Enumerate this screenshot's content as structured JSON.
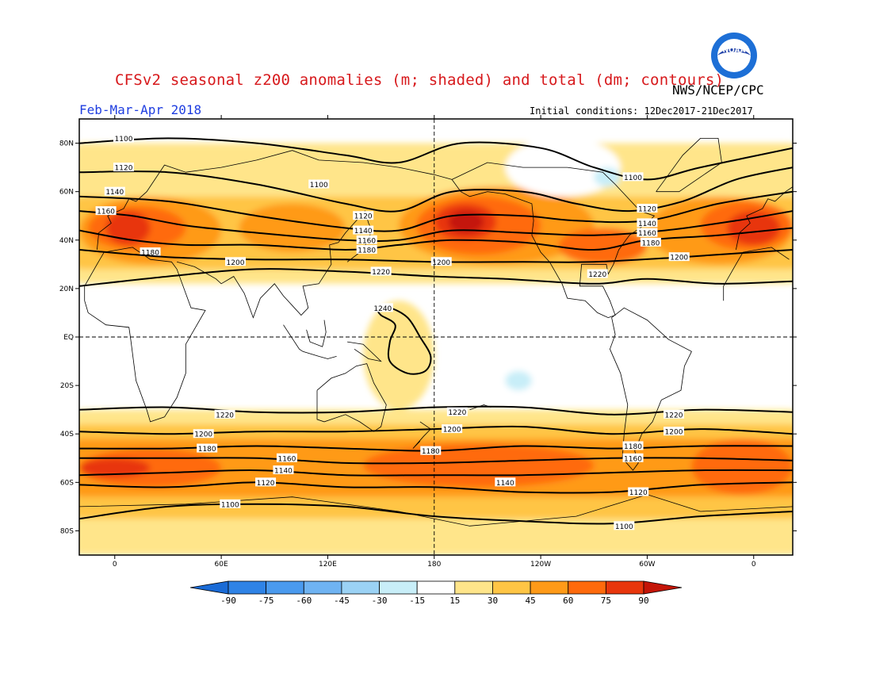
{
  "title": "CFSv2 seasonal z200 anomalies (m; shaded) and total (dm; contours)",
  "agency": "NWS/NCEP/CPC",
  "period": "Feb-Mar-Apr 2018",
  "initial_conditions": "Initial conditions: 12Dec2017-21Dec2017",
  "logo": {
    "text": "NOAA",
    "icon": "noaa-logo-icon",
    "colors": {
      "outer": "#1d6fd6",
      "inner": "#ffffff",
      "bird": "#1d3fa8"
    }
  },
  "map": {
    "projection": "cylindrical",
    "lon_range": [
      -20,
      382
    ],
    "lat_range": [
      -90,
      90
    ],
    "center_meridian_dashed": 180,
    "equator_dashed": true,
    "lat_ticks": [
      {
        "lat": 80,
        "label": "80N"
      },
      {
        "lat": 60,
        "label": "60N"
      },
      {
        "lat": 40,
        "label": "40N"
      },
      {
        "lat": 20,
        "label": "20N"
      },
      {
        "lat": 0,
        "label": "EQ"
      },
      {
        "lat": -20,
        "label": "20S"
      },
      {
        "lat": -40,
        "label": "40S"
      },
      {
        "lat": -60,
        "label": "60S"
      },
      {
        "lat": -80,
        "label": "80S"
      }
    ],
    "lon_ticks": [
      {
        "lon": 0,
        "label": "0"
      },
      {
        "lon": 60,
        "label": "60E"
      },
      {
        "lon": 120,
        "label": "120E"
      },
      {
        "lon": 180,
        "label": "180"
      },
      {
        "lon": 240,
        "label": "120W"
      },
      {
        "lon": 300,
        "label": "60W"
      },
      {
        "lon": 360,
        "label": "0"
      }
    ]
  },
  "anomaly_regions": [
    {
      "level": 15,
      "lon": [
        -20,
        382
      ],
      "lat": [
        22,
        80
      ],
      "shape": "band"
    },
    {
      "level": 15,
      "lon": [
        -20,
        382
      ],
      "lat": [
        -90,
        -30
      ],
      "shape": "band"
    },
    {
      "level": 15,
      "lon": [
        140,
        180
      ],
      "lat": [
        -30,
        15
      ],
      "shape": "blob"
    },
    {
      "level": 30,
      "lon": [
        -20,
        382
      ],
      "lat": [
        28,
        58
      ],
      "shape": "band"
    },
    {
      "level": 30,
      "lon": [
        -20,
        382
      ],
      "lat": [
        -75,
        -36
      ],
      "shape": "band"
    },
    {
      "level": 45,
      "lon": [
        -20,
        60
      ],
      "lat": [
        30,
        58
      ],
      "shape": "blob"
    },
    {
      "level": 45,
      "lon": [
        70,
        130
      ],
      "lat": [
        35,
        55
      ],
      "shape": "blob"
    },
    {
      "level": 45,
      "lon": [
        160,
        270
      ],
      "lat": [
        30,
        62
      ],
      "shape": "blob"
    },
    {
      "level": 45,
      "lon": [
        300,
        382
      ],
      "lat": [
        30,
        58
      ],
      "shape": "blob"
    },
    {
      "level": 45,
      "lon": [
        -20,
        382
      ],
      "lat": [
        -66,
        -42
      ],
      "shape": "band"
    },
    {
      "level": 60,
      "lon": [
        -15,
        40
      ],
      "lat": [
        36,
        54
      ],
      "shape": "blob"
    },
    {
      "level": 60,
      "lon": [
        170,
        240
      ],
      "lat": [
        34,
        58
      ],
      "shape": "blob"
    },
    {
      "level": 60,
      "lon": [
        250,
        300
      ],
      "lat": [
        30,
        45
      ],
      "shape": "blob"
    },
    {
      "level": 60,
      "lon": [
        330,
        382
      ],
      "lat": [
        36,
        56
      ],
      "shape": "blob"
    },
    {
      "level": 60,
      "lon": [
        -20,
        60
      ],
      "lat": [
        -62,
        -46
      ],
      "shape": "blob"
    },
    {
      "level": 60,
      "lon": [
        140,
        270
      ],
      "lat": [
        -62,
        -44
      ],
      "shape": "blob"
    },
    {
      "level": 60,
      "lon": [
        325,
        382
      ],
      "lat": [
        -65,
        -42
      ],
      "shape": "blob"
    },
    {
      "level": 75,
      "lon": [
        -5,
        20
      ],
      "lat": [
        38,
        52
      ],
      "shape": "blob"
    },
    {
      "level": 75,
      "lon": [
        180,
        215
      ],
      "lat": [
        40,
        55
      ],
      "shape": "blob"
    },
    {
      "level": 75,
      "lon": [
        345,
        375
      ],
      "lat": [
        38,
        52
      ],
      "shape": "blob"
    },
    {
      "level": 75,
      "lon": [
        -20,
        20
      ],
      "lat": [
        -58,
        -50
      ],
      "shape": "blob"
    },
    {
      "level": 90,
      "lon": [
        188,
        208
      ],
      "lat": [
        43,
        52
      ],
      "shape": "blob"
    },
    {
      "level": -15,
      "lon": [
        220,
        285
      ],
      "lat": [
        58,
        82
      ],
      "shape": "blob"
    },
    {
      "level": -30,
      "lon": [
        270,
        285
      ],
      "lat": [
        62,
        70
      ],
      "shape": "blob"
    },
    {
      "level": -15,
      "lon": [
        210,
        245
      ],
      "lat": [
        -28,
        -10
      ],
      "shape": "blob"
    },
    {
      "level": -30,
      "lon": [
        220,
        235
      ],
      "lat": [
        -22,
        -14
      ],
      "shape": "blob"
    }
  ],
  "contours": [
    {
      "value": "1100",
      "points": [
        [
          -20,
          80
        ],
        [
          30,
          82
        ],
        [
          80,
          80
        ],
        [
          130,
          75
        ],
        [
          160,
          72
        ],
        [
          195,
          80
        ],
        [
          240,
          78
        ],
        [
          270,
          70
        ],
        [
          300,
          65
        ],
        [
          330,
          70
        ],
        [
          382,
          78
        ]
      ],
      "labels": [
        {
          "lon": 5,
          "lat": 82
        },
        {
          "lon": 115,
          "lat": 63
        },
        {
          "lon": 292,
          "lat": 66
        }
      ]
    },
    {
      "value": "1120",
      "points": [
        [
          -20,
          68
        ],
        [
          30,
          68
        ],
        [
          80,
          63
        ],
        [
          130,
          55
        ],
        [
          160,
          52
        ],
        [
          190,
          60
        ],
        [
          230,
          60
        ],
        [
          260,
          55
        ],
        [
          290,
          52
        ],
        [
          320,
          56
        ],
        [
          350,
          65
        ],
        [
          382,
          70
        ]
      ],
      "labels": [
        {
          "lon": 5,
          "lat": 70
        },
        {
          "lon": 140,
          "lat": 50
        },
        {
          "lon": 300,
          "lat": 53
        }
      ]
    },
    {
      "value": "1140",
      "points": [
        [
          -20,
          58
        ],
        [
          30,
          56
        ],
        [
          80,
          50
        ],
        [
          130,
          45
        ],
        [
          160,
          44
        ],
        [
          190,
          50
        ],
        [
          230,
          50
        ],
        [
          260,
          48
        ],
        [
          300,
          48
        ],
        [
          340,
          55
        ],
        [
          382,
          60
        ]
      ],
      "labels": [
        {
          "lon": 0,
          "lat": 60
        },
        {
          "lon": 140,
          "lat": 44
        },
        {
          "lon": 300,
          "lat": 47
        }
      ]
    },
    {
      "value": "1160",
      "points": [
        [
          -20,
          52
        ],
        [
          10,
          50
        ],
        [
          40,
          46
        ],
        [
          80,
          43
        ],
        [
          130,
          40
        ],
        [
          160,
          40
        ],
        [
          190,
          44
        ],
        [
          230,
          43
        ],
        [
          270,
          42
        ],
        [
          310,
          44
        ],
        [
          350,
          48
        ],
        [
          382,
          52
        ]
      ],
      "labels": [
        {
          "lon": -5,
          "lat": 52
        },
        {
          "lon": 142,
          "lat": 40
        },
        {
          "lon": 300,
          "lat": 43
        }
      ]
    },
    {
      "value": "1180",
      "points": [
        [
          -20,
          44
        ],
        [
          10,
          40
        ],
        [
          40,
          38
        ],
        [
          80,
          38
        ],
        [
          130,
          36
        ],
        [
          160,
          38
        ],
        [
          190,
          40
        ],
        [
          230,
          39
        ],
        [
          270,
          36
        ],
        [
          300,
          40
        ],
        [
          340,
          42
        ],
        [
          382,
          45
        ]
      ],
      "labels": [
        {
          "lon": 20,
          "lat": 35
        },
        {
          "lon": 142,
          "lat": 36
        },
        {
          "lon": 302,
          "lat": 39
        }
      ]
    },
    {
      "value": "1200",
      "points": [
        [
          -20,
          36
        ],
        [
          30,
          33
        ],
        [
          80,
          32
        ],
        [
          130,
          32
        ],
        [
          180,
          31
        ],
        [
          230,
          31
        ],
        [
          270,
          31
        ],
        [
          320,
          33
        ],
        [
          360,
          35
        ],
        [
          382,
          36
        ]
      ],
      "labels": [
        {
          "lon": 68,
          "lat": 31
        },
        {
          "lon": 184,
          "lat": 31
        },
        {
          "lon": 318,
          "lat": 33
        }
      ]
    },
    {
      "value": "1220",
      "points": [
        [
          -20,
          21
        ],
        [
          30,
          25
        ],
        [
          80,
          28
        ],
        [
          130,
          27
        ],
        [
          180,
          25
        ],
        [
          220,
          24
        ],
        [
          270,
          22
        ],
        [
          300,
          24
        ],
        [
          340,
          22
        ],
        [
          382,
          23
        ]
      ],
      "labels": [
        {
          "lon": 150,
          "lat": 27
        },
        {
          "lon": 272,
          "lat": 26
        }
      ]
    },
    {
      "value": "1240",
      "points": [
        [
          148,
          11
        ],
        [
          155,
          12
        ],
        [
          165,
          8
        ],
        [
          172,
          0
        ],
        [
          178,
          -8
        ],
        [
          175,
          -14
        ],
        [
          165,
          -15
        ],
        [
          155,
          -10
        ],
        [
          155,
          -2
        ],
        [
          158,
          5
        ],
        [
          150,
          9
        ],
        [
          148,
          11
        ]
      ],
      "labels": [
        {
          "lon": 151,
          "lat": 12
        }
      ]
    },
    {
      "value": "1220",
      "points": [
        [
          -20,
          -30
        ],
        [
          30,
          -29
        ],
        [
          80,
          -31
        ],
        [
          130,
          -31
        ],
        [
          180,
          -29
        ],
        [
          230,
          -29
        ],
        [
          280,
          -32
        ],
        [
          330,
          -30
        ],
        [
          382,
          -31
        ]
      ],
      "labels": [
        {
          "lon": 62,
          "lat": -32
        },
        {
          "lon": 193,
          "lat": -31
        },
        {
          "lon": 315,
          "lat": -32
        }
      ]
    },
    {
      "value": "1200",
      "points": [
        [
          -20,
          -39
        ],
        [
          30,
          -40
        ],
        [
          80,
          -39
        ],
        [
          130,
          -39
        ],
        [
          180,
          -38
        ],
        [
          230,
          -37
        ],
        [
          280,
          -40
        ],
        [
          330,
          -38
        ],
        [
          382,
          -40
        ]
      ],
      "labels": [
        {
          "lon": 50,
          "lat": -40
        },
        {
          "lon": 190,
          "lat": -38
        },
        {
          "lon": 315,
          "lat": -39
        }
      ]
    },
    {
      "value": "1180",
      "points": [
        [
          -20,
          -46
        ],
        [
          30,
          -46
        ],
        [
          80,
          -45
        ],
        [
          130,
          -46
        ],
        [
          180,
          -47
        ],
        [
          230,
          -45
        ],
        [
          280,
          -46
        ],
        [
          330,
          -45
        ],
        [
          382,
          -45
        ]
      ],
      "labels": [
        {
          "lon": 52,
          "lat": -46
        },
        {
          "lon": 178,
          "lat": -47
        },
        {
          "lon": 292,
          "lat": -45
        }
      ]
    },
    {
      "value": "1160",
      "points": [
        [
          -20,
          -50
        ],
        [
          30,
          -50
        ],
        [
          80,
          -50
        ],
        [
          130,
          -52
        ],
        [
          180,
          -52
        ],
        [
          230,
          -51
        ],
        [
          280,
          -50
        ],
        [
          330,
          -50
        ],
        [
          382,
          -51
        ]
      ],
      "labels": [
        {
          "lon": 97,
          "lat": -50
        },
        {
          "lon": 292,
          "lat": -50
        }
      ]
    },
    {
      "value": "1140",
      "points": [
        [
          -20,
          -57
        ],
        [
          30,
          -56
        ],
        [
          80,
          -55
        ],
        [
          130,
          -57
        ],
        [
          180,
          -57
        ],
        [
          230,
          -57
        ],
        [
          280,
          -56
        ],
        [
          330,
          -55
        ],
        [
          382,
          -55
        ]
      ],
      "labels": [
        {
          "lon": 95,
          "lat": -55
        },
        {
          "lon": 220,
          "lat": -60
        }
      ]
    },
    {
      "value": "1120",
      "points": [
        [
          -20,
          -61
        ],
        [
          30,
          -62
        ],
        [
          80,
          -60
        ],
        [
          130,
          -62
        ],
        [
          180,
          -62
        ],
        [
          230,
          -64
        ],
        [
          280,
          -64
        ],
        [
          330,
          -61
        ],
        [
          382,
          -60
        ]
      ],
      "labels": [
        {
          "lon": 85,
          "lat": -60
        },
        {
          "lon": 295,
          "lat": -64
        }
      ]
    },
    {
      "value": "1100",
      "points": [
        [
          -20,
          -75
        ],
        [
          30,
          -70
        ],
        [
          80,
          -69
        ],
        [
          130,
          -70
        ],
        [
          180,
          -74
        ],
        [
          230,
          -76
        ],
        [
          280,
          -77
        ],
        [
          330,
          -74
        ],
        [
          382,
          -72
        ]
      ],
      "labels": [
        {
          "lon": 65,
          "lat": -69
        },
        {
          "lon": 287,
          "lat": -78
        }
      ]
    }
  ],
  "colorbar": {
    "levels": [
      "-90",
      "-75",
      "-60",
      "-45",
      "-30",
      "-15",
      "15",
      "30",
      "45",
      "60",
      "75",
      "90"
    ],
    "colors": [
      "#1a6bd6",
      "#2f83e6",
      "#4a9aee",
      "#6fb3f2",
      "#9bd2f5",
      "#c8eef8",
      "#ffffff",
      "#ffe58a",
      "#ffc545",
      "#ff9a18",
      "#ff6a0c",
      "#e8360c",
      "#c41508"
    ]
  }
}
